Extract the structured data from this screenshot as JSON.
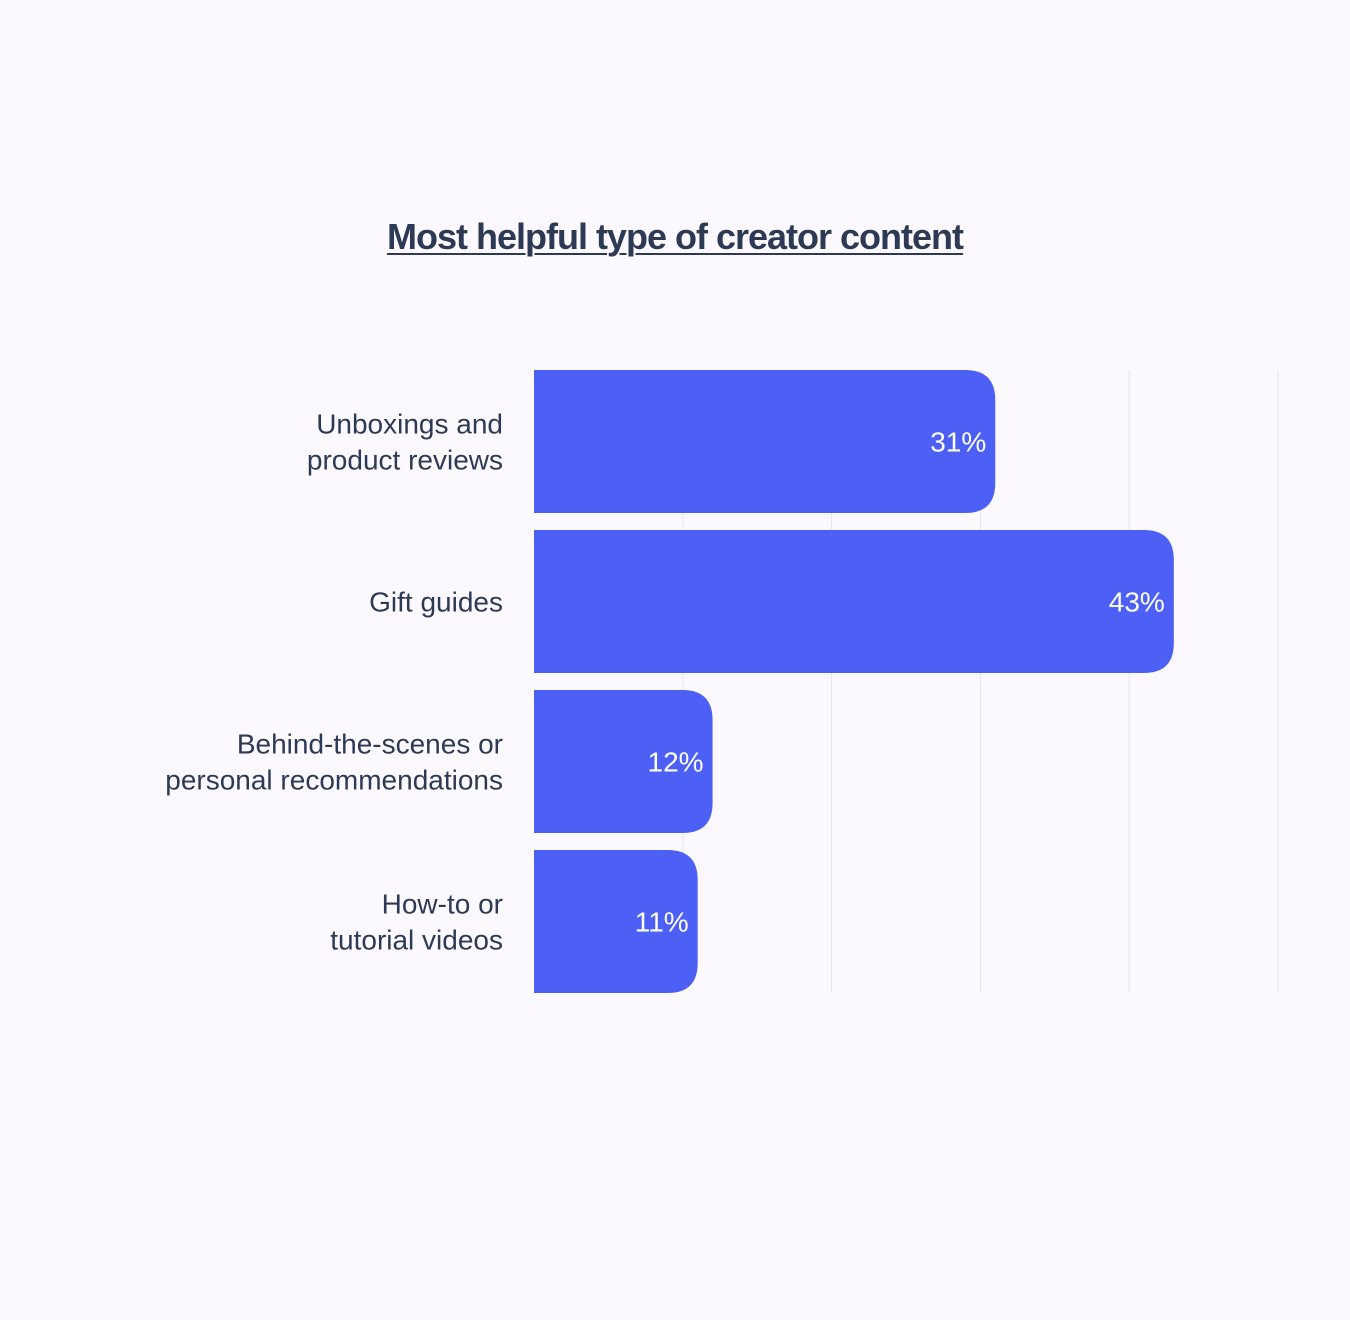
{
  "chart_data": {
    "type": "bar",
    "orientation": "horizontal",
    "title": "Most helpful type of creator content",
    "categories": [
      [
        "Unboxings and",
        "product reviews"
      ],
      [
        "Gift guides"
      ],
      [
        "Behind-the-scenes or",
        "personal recommendations"
      ],
      [
        "How-to or",
        "tutorial videos"
      ]
    ],
    "values": [
      31,
      43,
      12,
      11
    ],
    "value_labels": [
      "31%",
      "43%",
      "12%",
      "11%"
    ],
    "xlim": [
      0,
      50
    ],
    "grid": true,
    "legend": "none",
    "colors": {
      "bar": "#4d60f5",
      "grid": "#e6e3ec",
      "text": "#2d3a55",
      "value_text": "#ffffff",
      "background": "#fbf9fe"
    }
  }
}
